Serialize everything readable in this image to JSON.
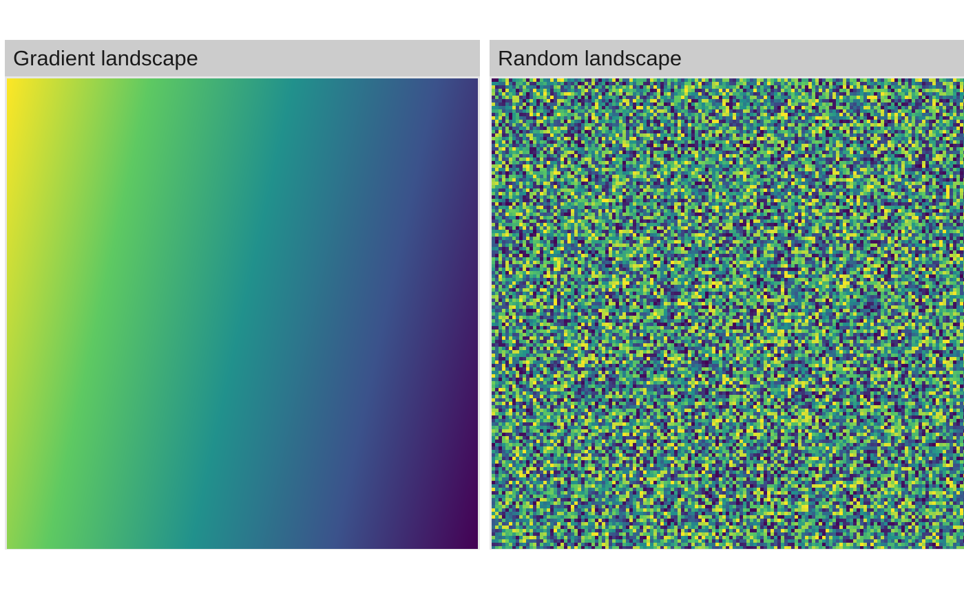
{
  "chart_data": [
    {
      "type": "heatmap",
      "title": "Gradient landscape",
      "grid": false,
      "legend": "none",
      "colormap": [
        "#440154",
        "#3b528b",
        "#21918c",
        "#5ec962",
        "#fde725"
      ],
      "pattern": "linear gradient, high value at top-left, low value at bottom-right",
      "value_range": [
        0,
        1
      ]
    },
    {
      "type": "heatmap",
      "title": "Random landscape",
      "grid": false,
      "legend": "none",
      "colormap": [
        "#440154",
        "#3b528b",
        "#21918c",
        "#5ec962",
        "#fde725"
      ],
      "pattern": "random uniform noise",
      "value_range": [
        0,
        1
      ]
    }
  ],
  "facets": {
    "left_title": "Gradient landscape",
    "right_title": "Random landscape"
  }
}
